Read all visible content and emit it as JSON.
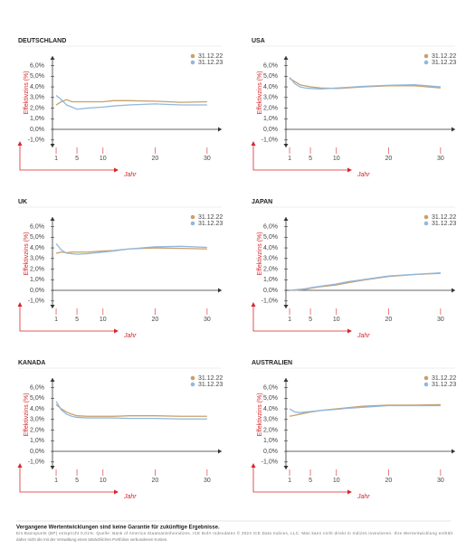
{
  "chart_data": [
    {
      "type": "line",
      "title": "DEUTSCHLAND",
      "ylabel": "Effektivzins (%)",
      "xlabel": "Jahr",
      "x": [
        1,
        2,
        3,
        4,
        5,
        7,
        10,
        12,
        15,
        20,
        25,
        30
      ],
      "series": [
        {
          "name": "31.12.22",
          "color": "#c9a06a",
          "values": [
            2.3,
            2.6,
            2.8,
            2.6,
            2.6,
            2.6,
            2.6,
            2.7,
            2.7,
            2.65,
            2.55,
            2.6
          ]
        },
        {
          "name": "31.12.23",
          "color": "#8fb8e0",
          "values": [
            3.2,
            2.8,
            2.3,
            2.1,
            1.9,
            2.0,
            2.1,
            2.2,
            2.3,
            2.4,
            2.3,
            2.3
          ]
        }
      ],
      "xlim": [
        0.3,
        32.8
      ],
      "ylim": [
        -1.7,
        6.9
      ],
      "xticks": [
        1,
        5,
        10,
        20,
        30
      ],
      "yticks": [
        {
          "value": 6,
          "label": "6,0%"
        },
        {
          "value": 5,
          "label": "5,0%"
        },
        {
          "value": 4,
          "label": "4,0%"
        },
        {
          "value": 3,
          "label": "3,0%"
        },
        {
          "value": 2,
          "label": "2,0%"
        },
        {
          "value": 1,
          "label": "1,0%"
        },
        {
          "value": 0,
          "label": "0,0%"
        },
        {
          "value": -1,
          "label": "-1,0%"
        }
      ]
    },
    {
      "type": "line",
      "title": "USA",
      "ylabel": "Effektivzins (%)",
      "xlabel": "Jahr",
      "x": [
        1,
        2,
        3,
        4,
        5,
        7,
        10,
        12,
        15,
        20,
        25,
        30
      ],
      "series": [
        {
          "name": "31.12.22",
          "color": "#c9a06a",
          "values": [
            4.8,
            4.5,
            4.2,
            4.1,
            4.0,
            3.9,
            3.85,
            3.9,
            4.0,
            4.1,
            4.1,
            3.9
          ]
        },
        {
          "name": "31.12.23",
          "color": "#8fb8e0",
          "values": [
            4.9,
            4.3,
            4.0,
            3.9,
            3.85,
            3.8,
            3.9,
            3.95,
            4.05,
            4.15,
            4.2,
            4.0
          ]
        }
      ],
      "xlim": [
        0.3,
        32.8
      ],
      "ylim": [
        -1.7,
        6.9
      ],
      "xticks": [
        1,
        5,
        10,
        20,
        30
      ],
      "yticks": [
        {
          "value": 6,
          "label": "6,0%"
        },
        {
          "value": 5,
          "label": "5,0%"
        },
        {
          "value": 4,
          "label": "4,0%"
        },
        {
          "value": 3,
          "label": "3,0%"
        },
        {
          "value": 2,
          "label": "2,0%"
        },
        {
          "value": 1,
          "label": "1,0%"
        },
        {
          "value": 0,
          "label": "0,0%"
        },
        {
          "value": -1,
          "label": "-1,0%"
        }
      ]
    },
    {
      "type": "line",
      "title": "UK",
      "ylabel": "Effektivzins (%)",
      "xlabel": "Jahr",
      "x": [
        1,
        2,
        3,
        4,
        5,
        7,
        10,
        12,
        15,
        20,
        25,
        30
      ],
      "series": [
        {
          "name": "31.12.22",
          "color": "#c9a06a",
          "values": [
            3.5,
            3.6,
            3.55,
            3.6,
            3.6,
            3.6,
            3.7,
            3.75,
            3.9,
            4.0,
            3.95,
            3.9
          ]
        },
        {
          "name": "31.12.23",
          "color": "#8fb8e0",
          "values": [
            4.4,
            3.8,
            3.5,
            3.45,
            3.4,
            3.45,
            3.6,
            3.7,
            3.9,
            4.1,
            4.15,
            4.05
          ]
        }
      ],
      "xlim": [
        0.3,
        32.8
      ],
      "ylim": [
        -1.7,
        6.9
      ],
      "xticks": [
        1,
        5,
        10,
        20,
        30
      ],
      "yticks": [
        {
          "value": 6,
          "label": "6,0%"
        },
        {
          "value": 5,
          "label": "5,0%"
        },
        {
          "value": 4,
          "label": "4,0%"
        },
        {
          "value": 3,
          "label": "3,0%"
        },
        {
          "value": 2,
          "label": "2,0%"
        },
        {
          "value": 1,
          "label": "1,0%"
        },
        {
          "value": 0,
          "label": "0,0%"
        },
        {
          "value": -1,
          "label": "-1,0%"
        }
      ]
    },
    {
      "type": "line",
      "title": "JAPAN",
      "ylabel": "Effektivzins (%)",
      "xlabel": "Jahr",
      "x": [
        1,
        2,
        3,
        4,
        5,
        7,
        10,
        12,
        15,
        20,
        25,
        30
      ],
      "series": [
        {
          "name": "31.12.22",
          "color": "#c9a06a",
          "values": [
            0.0,
            0.0,
            0.05,
            0.1,
            0.2,
            0.35,
            0.5,
            0.7,
            0.95,
            1.3,
            1.5,
            1.6
          ]
        },
        {
          "name": "31.12.23",
          "color": "#8fb8e0",
          "values": [
            0.0,
            0.05,
            0.1,
            0.15,
            0.25,
            0.4,
            0.6,
            0.8,
            1.0,
            1.35,
            1.5,
            1.65
          ]
        }
      ],
      "xlim": [
        0.3,
        32.8
      ],
      "ylim": [
        -1.7,
        6.9
      ],
      "xticks": [
        1,
        5,
        10,
        20,
        30
      ],
      "yticks": [
        {
          "value": 6,
          "label": "6,0%"
        },
        {
          "value": 5,
          "label": "5,0%"
        },
        {
          "value": 4,
          "label": "4,0%"
        },
        {
          "value": 3,
          "label": "3,0%"
        },
        {
          "value": 2,
          "label": "2,0%"
        },
        {
          "value": 1,
          "label": "1,0%"
        },
        {
          "value": 0,
          "label": "0,0%"
        },
        {
          "value": -1,
          "label": "-1,0%"
        }
      ]
    },
    {
      "type": "line",
      "title": "KANADA",
      "ylabel": "Effektivzins (%)",
      "xlabel": "Jahr",
      "x": [
        1,
        2,
        3,
        4,
        5,
        7,
        10,
        12,
        15,
        20,
        25,
        30
      ],
      "series": [
        {
          "name": "31.12.22",
          "color": "#c9a06a",
          "values": [
            4.4,
            4.0,
            3.7,
            3.5,
            3.35,
            3.3,
            3.3,
            3.3,
            3.35,
            3.35,
            3.3,
            3.3
          ]
        },
        {
          "name": "31.12.23",
          "color": "#8fb8e0",
          "values": [
            4.7,
            3.9,
            3.5,
            3.3,
            3.2,
            3.15,
            3.15,
            3.15,
            3.1,
            3.1,
            3.05,
            3.05
          ]
        }
      ],
      "xlim": [
        0.3,
        32.8
      ],
      "ylim": [
        -1.7,
        6.9
      ],
      "xticks": [
        1,
        5,
        10,
        20,
        30
      ],
      "yticks": [
        {
          "value": 6,
          "label": "6,0%"
        },
        {
          "value": 5,
          "label": "5,0%"
        },
        {
          "value": 4,
          "label": "4,0%"
        },
        {
          "value": 3,
          "label": "3,0%"
        },
        {
          "value": 2,
          "label": "2,0%"
        },
        {
          "value": 1,
          "label": "1,0%"
        },
        {
          "value": 0,
          "label": "0,0%"
        },
        {
          "value": -1,
          "label": "-1,0%"
        }
      ]
    },
    {
      "type": "line",
      "title": "AUSTRALIEN",
      "ylabel": "Effektivzins (%)",
      "xlabel": "Jahr",
      "x": [
        1,
        2,
        3,
        4,
        5,
        7,
        10,
        12,
        15,
        20,
        25,
        30
      ],
      "series": [
        {
          "name": "31.12.22",
          "color": "#c9a06a",
          "values": [
            3.3,
            3.4,
            3.5,
            3.6,
            3.7,
            3.85,
            4.0,
            4.1,
            4.25,
            4.35,
            4.35,
            4.4
          ]
        },
        {
          "name": "31.12.23",
          "color": "#8fb8e0",
          "values": [
            4.0,
            3.7,
            3.65,
            3.7,
            3.75,
            3.85,
            3.95,
            4.05,
            4.15,
            4.3,
            4.3,
            4.3
          ]
        }
      ],
      "xlim": [
        0.3,
        32.8
      ],
      "ylim": [
        -1.7,
        6.9
      ],
      "xticks": [
        1,
        5,
        10,
        20,
        30
      ],
      "yticks": [
        {
          "value": 6,
          "label": "6,0%"
        },
        {
          "value": 5,
          "label": "5,0%"
        },
        {
          "value": 4,
          "label": "4,0%"
        },
        {
          "value": 3,
          "label": "3,0%"
        },
        {
          "value": 2,
          "label": "2,0%"
        },
        {
          "value": 1,
          "label": "1,0%"
        },
        {
          "value": 0,
          "label": "0,0%"
        },
        {
          "value": -1,
          "label": "-1,0%"
        }
      ]
    }
  ],
  "footer": {
    "heading": "Vergangene Wertentwicklungen sind keine Garantie für zukünftige Ergebnisse.",
    "lines": [
      "Ein Basispunkt (BP) entspricht 0,01%. Quelle: Bank of America Staatsanleiheindizes. ICE BofA Indexdaten © 2024 ICE Data Indices, LLC. Man kann nicht direkt in Indizes investieren. Ihre Wertentwicklung enthält",
      "daher nicht die mit der Verwaltung eines tatsächlichen Portfolios verbundenen Kosten."
    ]
  }
}
